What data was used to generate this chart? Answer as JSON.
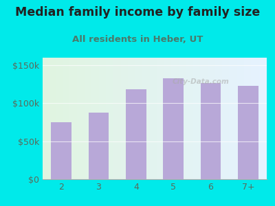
{
  "title": "Median family income by family size",
  "subtitle": "All residents in Heber, UT",
  "categories": [
    "2",
    "3",
    "4",
    "5",
    "6",
    "7+"
  ],
  "values": [
    75000,
    88000,
    118000,
    133000,
    127000,
    123000
  ],
  "bar_color": "#b8a8d8",
  "background_outer": "#00eaea",
  "title_color": "#222222",
  "subtitle_color": "#4a7a6a",
  "tick_color": "#5a6a5a",
  "ylim": [
    0,
    160000
  ],
  "yticks": [
    0,
    50000,
    100000,
    150000
  ],
  "ytick_labels": [
    "$0",
    "$50k",
    "$100k",
    "$150k"
  ],
  "title_fontsize": 12.5,
  "subtitle_fontsize": 9.5,
  "watermark": "City-Data.com"
}
